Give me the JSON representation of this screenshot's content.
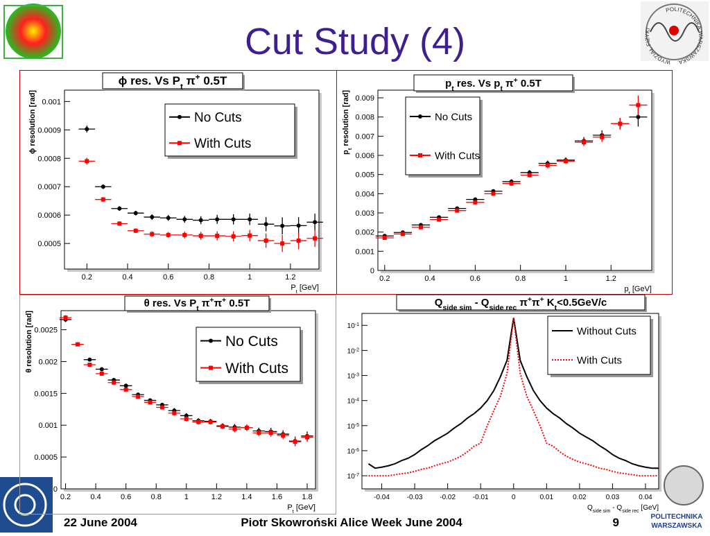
{
  "title": "Cut Study (4)",
  "footer": {
    "date": "22 June 2004",
    "author": "Piotr Skowroński  Alice Week June  2004",
    "page": 9
  },
  "logo_text": [
    "WYDZIAŁ FIZYKI",
    "POLITECHNIKA WARSZAWSKA"
  ],
  "institution": [
    "POLITECHNIKA",
    "WARSZAWSKA"
  ],
  "chart_data": [
    {
      "type": "errorbar",
      "title": [
        {
          "text": "ϕ res. Vs P"
        },
        {
          "text": "t",
          "sub": true
        },
        {
          "text": " π"
        },
        {
          "text": "+",
          "sup": true
        },
        {
          "text": " 0.5T"
        }
      ],
      "xlabel": [
        {
          "text": "P"
        },
        {
          "text": "t",
          "sub": true
        },
        {
          "text": " [GeV]"
        }
      ],
      "ylabel": [
        {
          "text": "ϕ resolution [rad]"
        }
      ],
      "x": [
        0.2,
        0.28,
        0.36,
        0.44,
        0.52,
        0.6,
        0.68,
        0.76,
        0.84,
        0.92,
        1.0,
        1.08,
        1.16,
        1.24,
        1.32
      ],
      "xerr": 0.04,
      "series": [
        {
          "name": "No Cuts",
          "color": "#000000",
          "marker": "circle",
          "values": [
            0.000903,
            0.0007,
            0.000623,
            0.000607,
            0.000593,
            0.00059,
            0.000585,
            0.000582,
            0.000585,
            0.000585,
            0.000585,
            0.000568,
            0.000562,
            0.000563,
            0.000575
          ],
          "errors": [
            1.2e-05,
            8e-06,
            8e-06,
            8e-06,
            1e-05,
            1e-05,
            1.2e-05,
            1.4e-05,
            1.6e-05,
            1.8e-05,
            2e-05,
            2.5e-05,
            3e-05,
            3e-05,
            3e-05
          ]
        },
        {
          "name": "With Cuts",
          "color": "#ff0000",
          "marker": "square",
          "values": [
            0.00079,
            0.000655,
            0.00057,
            0.000545,
            0.000533,
            0.00053,
            0.00053,
            0.000527,
            0.000527,
            0.000525,
            0.000528,
            0.00051,
            0.0005,
            0.00051,
            0.000518
          ],
          "errors": [
            1.2e-05,
            8e-06,
            8e-06,
            8e-06,
            1e-05,
            1e-05,
            1.2e-05,
            1.4e-05,
            1.6e-05,
            1.8e-05,
            2e-05,
            2.5e-05,
            3e-05,
            3e-05,
            3e-05
          ]
        }
      ],
      "xlim": [
        0.09,
        1.34
      ],
      "ylim": [
        0.00041,
        0.00104
      ],
      "xticks": [
        0.2,
        0.4,
        0.6,
        0.8,
        1,
        1.2
      ],
      "yticks": [
        0.0005,
        0.0006,
        0.0007,
        0.0008,
        0.0009,
        0.001
      ],
      "legend": "upper right"
    },
    {
      "type": "errorbar",
      "title": [
        {
          "text": "p"
        },
        {
          "text": "t",
          "sub": true
        },
        {
          "text": " res. Vs p"
        },
        {
          "text": "t",
          "sub": true
        },
        {
          "text": " π"
        },
        {
          "text": "+",
          "sup": true
        },
        {
          "text": " 0.5T"
        }
      ],
      "xlabel": [
        {
          "text": "p"
        },
        {
          "text": "t",
          "sub": true
        },
        {
          "text": " [GeV]"
        }
      ],
      "ylabel": [
        {
          "text": "p"
        },
        {
          "text": "t",
          "sub": true
        },
        {
          "text": " resolution [rad]"
        }
      ],
      "x": [
        0.2,
        0.28,
        0.36,
        0.44,
        0.52,
        0.6,
        0.68,
        0.76,
        0.84,
        0.92,
        1.0,
        1.08,
        1.16,
        1.24,
        1.32
      ],
      "xerr": 0.04,
      "series": [
        {
          "name": "No Cuts",
          "color": "#000000",
          "marker": "circle",
          "values": [
            0.0018,
            0.00198,
            0.00237,
            0.00277,
            0.00323,
            0.0037,
            0.00413,
            0.00463,
            0.0051,
            0.00558,
            0.00575,
            0.00675,
            0.00705,
            0.00765,
            0.008
          ],
          "errors": [
            5e-05,
            5e-05,
            6e-05,
            7e-05,
            8e-05,
            0.0001,
            0.0001,
            0.00012,
            0.00013,
            0.00015,
            0.00015,
            0.0002,
            0.00025,
            0.0003,
            0.0005
          ]
        },
        {
          "name": "With Cuts",
          "color": "#ff0000",
          "marker": "square",
          "values": [
            0.0017,
            0.0019,
            0.00225,
            0.00265,
            0.00312,
            0.00355,
            0.004,
            0.00453,
            0.00497,
            0.00548,
            0.0057,
            0.00668,
            0.00695,
            0.00765,
            0.00862
          ],
          "errors": [
            5e-05,
            5e-05,
            6e-05,
            7e-05,
            8e-05,
            0.0001,
            0.0001,
            0.00012,
            0.00013,
            0.00015,
            0.00015,
            0.0002,
            0.00025,
            0.0003,
            0.0005
          ]
        }
      ],
      "xlim": [
        0.17,
        1.38
      ],
      "ylim": [
        0,
        0.0094
      ],
      "xticks": [
        0.2,
        0.4,
        0.6,
        0.8,
        1,
        1.2
      ],
      "yticks": [
        0,
        0.001,
        0.002,
        0.003,
        0.004,
        0.005,
        0.006,
        0.007,
        0.008,
        0.009
      ],
      "legend": "upper left"
    },
    {
      "type": "errorbar",
      "title": [
        {
          "text": "θ res. Vs P"
        },
        {
          "text": "t",
          "sub": true
        },
        {
          "text": " π"
        },
        {
          "text": "+",
          "sup": true
        },
        {
          "text": "π"
        },
        {
          "text": "+",
          "sup": true
        },
        {
          "text": " 0.5T"
        }
      ],
      "xlabel": [
        {
          "text": "P"
        },
        {
          "text": "t",
          "sub": true
        },
        {
          "text": " [GeV]"
        }
      ],
      "ylabel": [
        {
          "text": "θ resolution [rad]"
        }
      ],
      "x": [
        0.2,
        0.28,
        0.36,
        0.44,
        0.52,
        0.6,
        0.68,
        0.76,
        0.84,
        0.92,
        1.0,
        1.08,
        1.16,
        1.24,
        1.32,
        1.4,
        1.48,
        1.56,
        1.64,
        1.72,
        1.8
      ],
      "xerr": 0.04,
      "series": [
        {
          "name": "No Cuts",
          "color": "#000000",
          "marker": "circle",
          "values": [
            0.00266,
            0.00227,
            0.00203,
            0.00188,
            0.00171,
            0.00162,
            0.00148,
            0.00139,
            0.00132,
            0.00123,
            0.00115,
            0.00107,
            0.00106,
            0.00099,
            0.00097,
            0.00096,
            0.00091,
            0.0009,
            0.00086,
            0.00075,
            0.00083
          ],
          "errors": [
            4e-05,
            3e-05,
            3e-05,
            3e-05,
            3e-05,
            3e-05,
            3e-05,
            3e-05,
            3e-05,
            4e-05,
            4e-05,
            4e-05,
            4e-05,
            4e-05,
            5e-05,
            5e-05,
            5e-05,
            6e-05,
            6e-05,
            7e-05,
            7e-05
          ]
        },
        {
          "name": "With Cuts",
          "color": "#ff0000",
          "marker": "square",
          "values": [
            0.00269,
            0.00227,
            0.00195,
            0.00181,
            0.00167,
            0.00156,
            0.00145,
            0.00136,
            0.00128,
            0.00119,
            0.0011,
            0.00105,
            0.00105,
            0.00098,
            0.00094,
            0.00096,
            0.00088,
            0.00088,
            0.00084,
            0.00074,
            0.00081
          ],
          "errors": [
            4e-05,
            3e-05,
            3e-05,
            3e-05,
            3e-05,
            3e-05,
            3e-05,
            3e-05,
            3e-05,
            4e-05,
            4e-05,
            4e-05,
            4e-05,
            4e-05,
            5e-05,
            5e-05,
            5e-05,
            6e-05,
            6e-05,
            7e-05,
            7e-05
          ]
        }
      ],
      "xlim": [
        0.17,
        1.855
      ],
      "ylim": [
        0,
        0.0028
      ],
      "xticks": [
        0.2,
        0.4,
        0.6,
        0.8,
        1,
        1.2,
        1.4,
        1.6,
        1.8
      ],
      "yticks": [
        0,
        0.0005,
        0.001,
        0.0015,
        0.002,
        0.0025
      ],
      "legend": "upper right"
    },
    {
      "type": "line",
      "log_y": true,
      "title": [
        {
          "text": "Q"
        },
        {
          "text": "side sim",
          "sub": true
        },
        {
          "text": " - Q"
        },
        {
          "text": "side rec",
          "sub": true
        },
        {
          "text": "  π"
        },
        {
          "text": "+",
          "sup": true
        },
        {
          "text": "π"
        },
        {
          "text": "+",
          "sup": true
        },
        {
          "text": " K"
        },
        {
          "text": "t",
          "sub": true
        },
        {
          "text": "<0.5GeV/c"
        }
      ],
      "xlabel": [
        {
          "text": "Q"
        },
        {
          "text": "side sim",
          "sub": true
        },
        {
          "text": " - Q"
        },
        {
          "text": "side rec",
          "sub": true
        },
        {
          "text": " [GeV]"
        }
      ],
      "x": [
        -0.044,
        -0.042,
        -0.04,
        -0.038,
        -0.036,
        -0.034,
        -0.032,
        -0.03,
        -0.028,
        -0.026,
        -0.024,
        -0.022,
        -0.02,
        -0.018,
        -0.016,
        -0.014,
        -0.012,
        -0.01,
        -0.008,
        -0.006,
        -0.004,
        -0.002,
        0,
        0.002,
        0.004,
        0.006,
        0.008,
        0.01,
        0.012,
        0.014,
        0.016,
        0.018,
        0.02,
        0.022,
        0.024,
        0.026,
        0.028,
        0.03,
        0.032,
        0.034,
        0.036,
        0.038,
        0.04,
        0.042,
        0.044
      ],
      "series": [
        {
          "name": "Without Cuts",
          "color": "#000000",
          "dash": "solid",
          "values": [
            3e-07,
            2e-07,
            2.2e-07,
            2.5e-07,
            3e-07,
            4e-07,
            5e-07,
            7e-07,
            1.1e-06,
            1.6e-06,
            2.5e-06,
            3.5e-06,
            5e-06,
            8e-06,
            1.2e-05,
            2e-05,
            3e-05,
            5e-05,
            0.0001,
            0.00025,
            0.0009,
            0.004,
            0.2,
            0.004,
            0.0009,
            0.00025,
            0.0001,
            5e-05,
            3e-05,
            2e-05,
            1.2e-05,
            8e-06,
            5e-06,
            3.5e-06,
            2.5e-06,
            1.6e-06,
            1.1e-06,
            7e-07,
            5e-07,
            4e-07,
            3e-07,
            2.5e-07,
            2.2e-07,
            2e-07,
            2e-07
          ]
        },
        {
          "name": "With Cuts",
          "color": "#ff0000",
          "dash": "dotted",
          "values": [
            1e-07,
            1e-07,
            1e-07,
            1e-07,
            1.1e-07,
            1.2e-07,
            1.3e-07,
            1.5e-07,
            1.8e-07,
            2e-07,
            2.5e-07,
            3e-07,
            3.5e-07,
            4.5e-07,
            6e-07,
            9e-07,
            1.5e-06,
            2e-06,
            1e-05,
            4e-05,
            0.00015,
            0.0012,
            0.2,
            0.0012,
            0.00015,
            4e-05,
            1e-05,
            2e-06,
            1.5e-06,
            9e-07,
            6e-07,
            4.5e-07,
            3.5e-07,
            3e-07,
            2.5e-07,
            2e-07,
            1.8e-07,
            1.5e-07,
            1.3e-07,
            1.2e-07,
            1.1e-07,
            1e-07,
            1e-07,
            1e-07,
            1e-07
          ]
        }
      ],
      "xlim": [
        -0.046,
        0.044
      ],
      "ylim": [
        3e-08,
        0.3
      ],
      "xticks": [
        -0.04,
        -0.03,
        -0.02,
        -0.01,
        0,
        0.01,
        0.02,
        0.03,
        0.04
      ],
      "yticks": [
        {
          "value": 1e-07,
          "label": [
            "10",
            "-7"
          ]
        },
        {
          "value": 1e-06,
          "label": [
            "10",
            "-6"
          ]
        },
        {
          "value": 1e-05,
          "label": [
            "10",
            "-5"
          ]
        },
        {
          "value": 0.0001,
          "label": [
            "10",
            "-4"
          ]
        },
        {
          "value": 0.001,
          "label": [
            "10",
            "-3"
          ]
        },
        {
          "value": 0.01,
          "label": [
            "10",
            "-2"
          ]
        },
        {
          "value": 0.1,
          "label": [
            "10",
            "-1"
          ]
        }
      ],
      "legend": "upper right"
    }
  ]
}
